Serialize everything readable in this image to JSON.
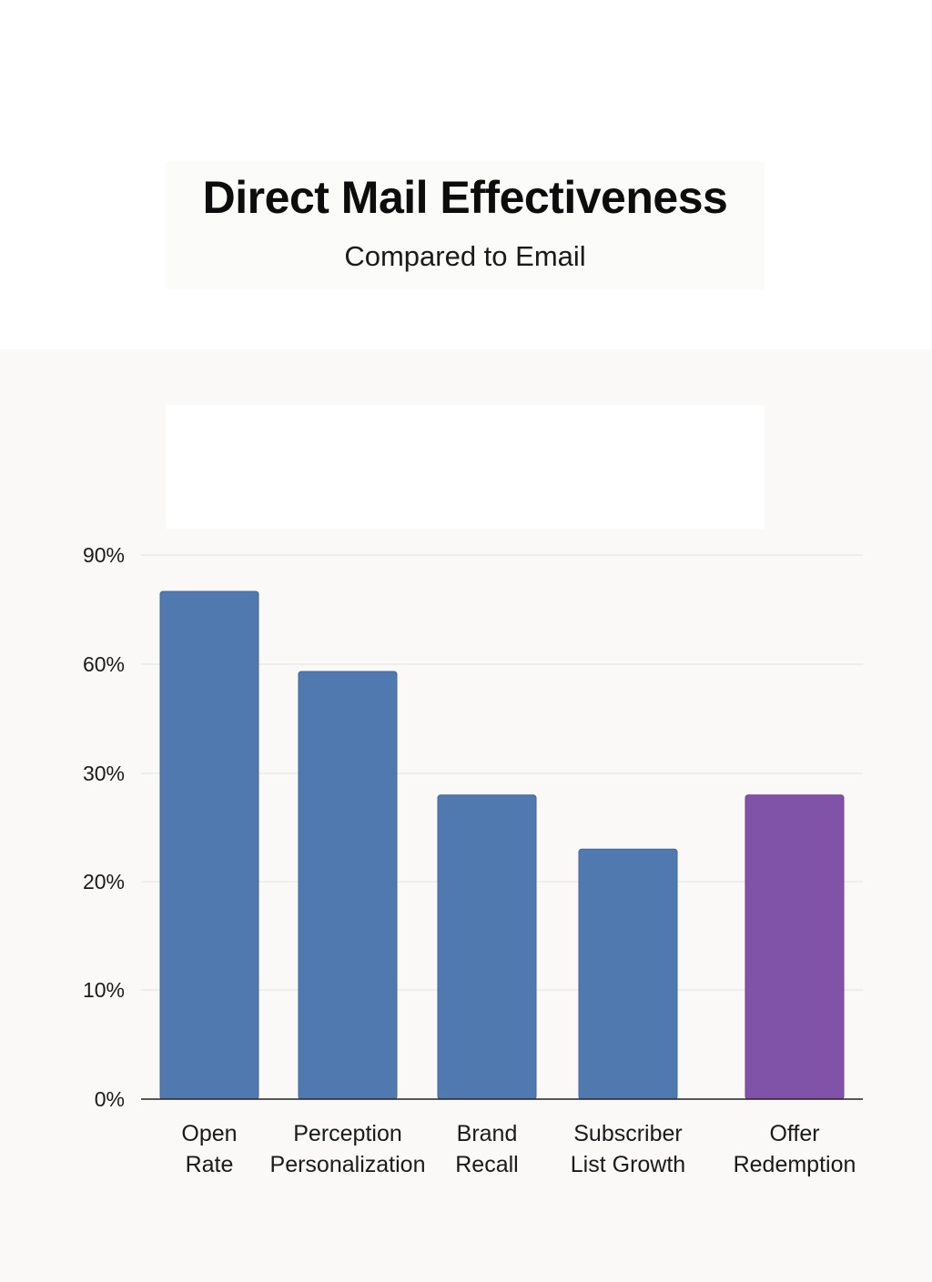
{
  "chart_data": {
    "type": "bar",
    "title": "Direct Mail Effectiveness",
    "subtitle": "Compared to Email",
    "categories": [
      [
        "Open",
        "Rate"
      ],
      [
        "Perception",
        "Personalization"
      ],
      [
        "Brand",
        "Recall"
      ],
      [
        "Subscriber",
        "List Growth"
      ],
      [
        "Offer",
        "Redemption"
      ]
    ],
    "values": [
      80,
      58,
      28,
      23,
      28
    ],
    "colors": [
      "#5079b0",
      "#5079b0",
      "#5079b0",
      "#5079b0",
      "#8153a8"
    ],
    "y_ticks": [
      "0%",
      "10%",
      "20%",
      "30%",
      "60%",
      "90%"
    ],
    "grid": true,
    "xlabel": "",
    "ylabel": ""
  }
}
